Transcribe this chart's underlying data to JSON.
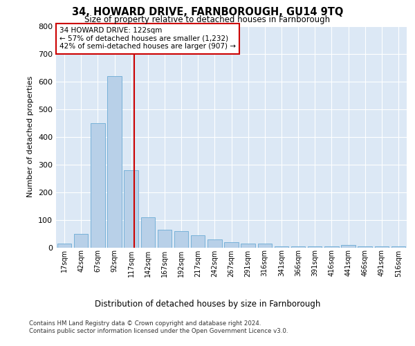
{
  "title": "34, HOWARD DRIVE, FARNBOROUGH, GU14 9TQ",
  "subtitle": "Size of property relative to detached houses in Farnborough",
  "xlabel": "Distribution of detached houses by size in Farnborough",
  "ylabel": "Number of detached properties",
  "categories": [
    "17sqm",
    "42sqm",
    "67sqm",
    "92sqm",
    "117sqm",
    "142sqm",
    "167sqm",
    "192sqm",
    "217sqm",
    "242sqm",
    "267sqm",
    "291sqm",
    "316sqm",
    "341sqm",
    "366sqm",
    "391sqm",
    "416sqm",
    "441sqm",
    "466sqm",
    "491sqm",
    "516sqm"
  ],
  "values": [
    15,
    50,
    450,
    620,
    280,
    110,
    65,
    60,
    45,
    30,
    20,
    15,
    15,
    3,
    3,
    3,
    3,
    8,
    3,
    3,
    3
  ],
  "bar_color": "#b8d0e8",
  "bar_edge_color": "#6aaad4",
  "vline_color": "#cc0000",
  "vline_pos": 4.2,
  "annotation_text": "34 HOWARD DRIVE: 122sqm\n← 57% of detached houses are smaller (1,232)\n42% of semi-detached houses are larger (907) →",
  "annotation_box_color": "#ffffff",
  "annotation_box_edge_color": "#cc0000",
  "ylim": [
    0,
    800
  ],
  "yticks": [
    0,
    100,
    200,
    300,
    400,
    500,
    600,
    700,
    800
  ],
  "background_color": "#dce8f5",
  "footer_line1": "Contains HM Land Registry data © Crown copyright and database right 2024.",
  "footer_line2": "Contains public sector information licensed under the Open Government Licence v3.0."
}
